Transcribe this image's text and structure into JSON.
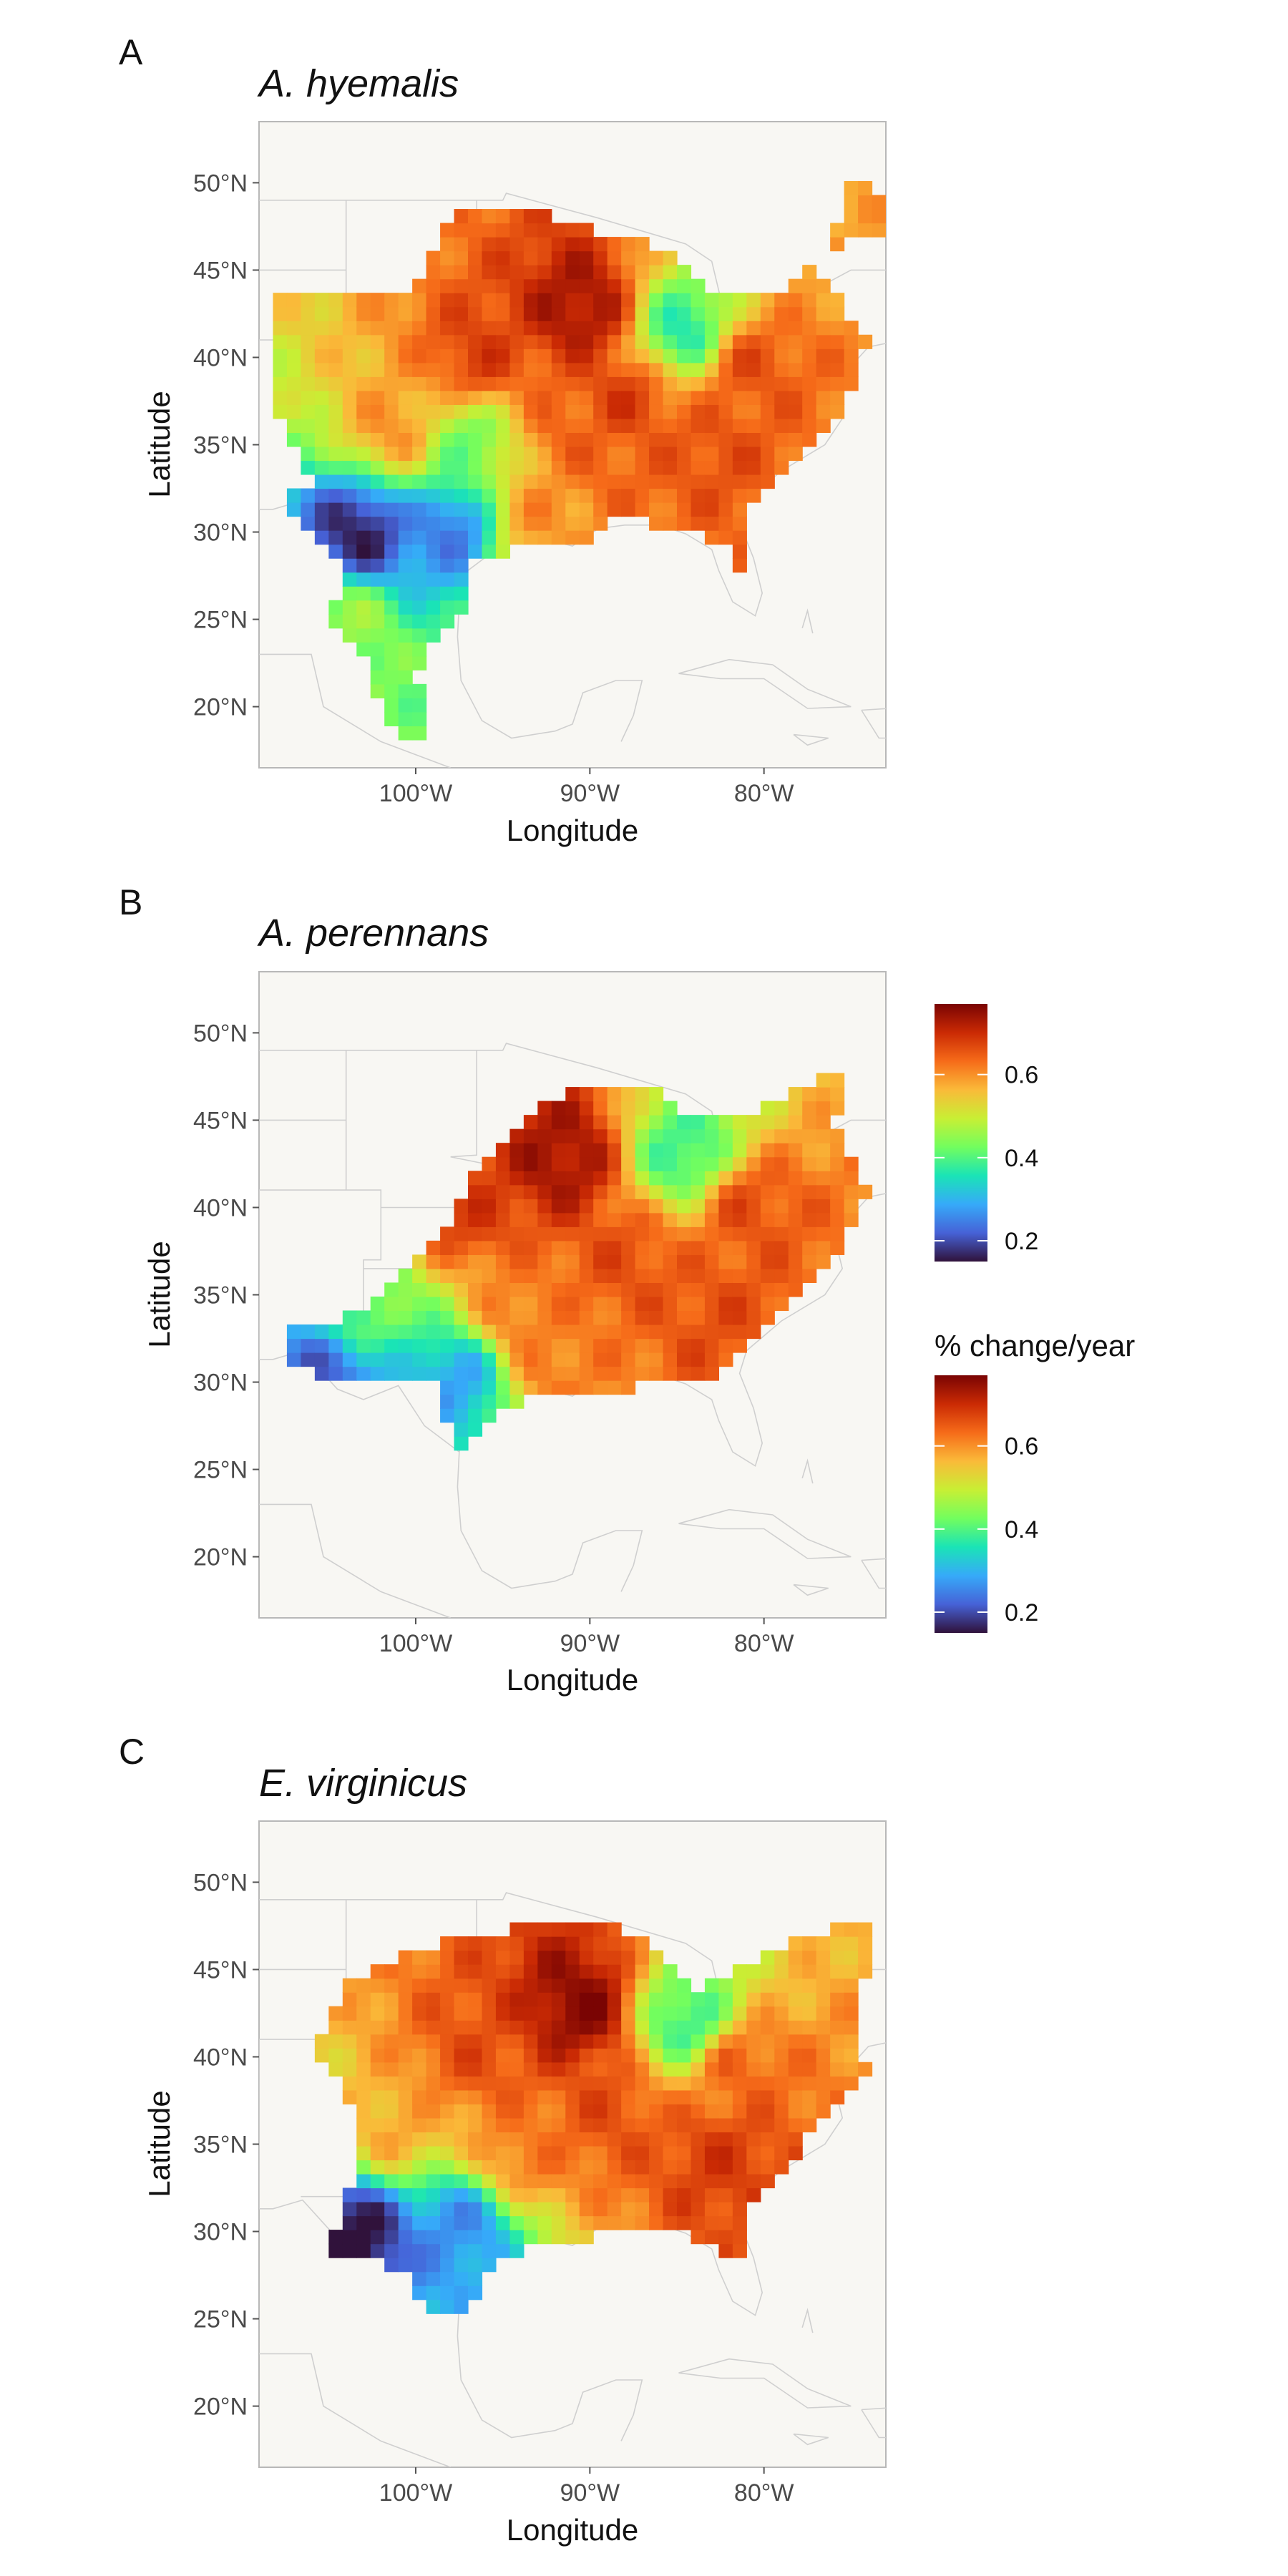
{
  "figure": {
    "panels": [
      {
        "letter": "A",
        "title": "A. hyemalis"
      },
      {
        "letter": "B",
        "title": "A. perennans"
      },
      {
        "letter": "C",
        "title": "E. virginicus"
      }
    ]
  },
  "chart_data": [
    {
      "type": "heatmap",
      "panel": "A",
      "title": "A. hyemalis",
      "xlabel": "Longitude",
      "ylabel": "Latitude",
      "x_ticks": [
        "100°W",
        "90°W",
        "80°W"
      ],
      "x_tick_values": [
        -100,
        -90,
        -80
      ],
      "y_ticks": [
        "20°N",
        "25°N",
        "30°N",
        "35°N",
        "40°N",
        "45°N",
        "50°N"
      ],
      "y_tick_values": [
        20,
        25,
        30,
        35,
        40,
        45,
        50
      ],
      "xlim": [
        -109,
        -73
      ],
      "ylim": [
        16.5,
        53.5
      ],
      "grid": false,
      "value_range": [
        0.15,
        0.77
      ],
      "hotspots": [
        {
          "lon": -90.5,
          "lat": 42.8,
          "value": 0.74
        },
        {
          "lon": -96.5,
          "lat": 40.0,
          "value": 0.68
        },
        {
          "lon": -88.0,
          "lat": 37.5,
          "value": 0.68
        },
        {
          "lon": -91.0,
          "lat": 36.0,
          "value": 0.64
        },
        {
          "lon": -88.0,
          "lat": 34.0,
          "value": 0.64
        },
        {
          "lon": -83.0,
          "lat": 34.5,
          "value": 0.66
        },
        {
          "lon": -81.0,
          "lat": 39.5,
          "value": 0.66
        },
        {
          "lon": -101.0,
          "lat": 36.0,
          "value": 0.6
        },
        {
          "lon": -93.0,
          "lat": 31.0,
          "value": 0.6
        },
        {
          "lon": -103.2,
          "lat": 29.9,
          "value": 0.16
        },
        {
          "lon": -98.0,
          "lat": 30.2,
          "value": 0.24
        },
        {
          "lon": -84.5,
          "lat": 41.5,
          "value": 0.36
        },
        {
          "lon": -97.0,
          "lat": 35.0,
          "value": 0.42
        },
        {
          "lon": -104.0,
          "lat": 25.0,
          "value": 0.46
        }
      ]
    },
    {
      "type": "heatmap",
      "panel": "B",
      "title": "A. perennans",
      "xlabel": "Longitude",
      "ylabel": "Latitude",
      "x_ticks": [
        "100°W",
        "90°W",
        "80°W"
      ],
      "x_tick_values": [
        -100,
        -90,
        -80
      ],
      "y_ticks": [
        "20°N",
        "25°N",
        "30°N",
        "35°N",
        "40°N",
        "45°N",
        "50°N"
      ],
      "y_tick_values": [
        20,
        25,
        30,
        35,
        40,
        45,
        50
      ],
      "xlim": [
        -109,
        -73
      ],
      "ylim": [
        16.5,
        53.5
      ],
      "grid": false,
      "value_range": [
        0.15,
        0.77
      ],
      "hotspots": [
        {
          "lon": -91.5,
          "lat": 42.8,
          "value": 0.74
        },
        {
          "lon": -97.0,
          "lat": 40.0,
          "value": 0.68
        },
        {
          "lon": -88.0,
          "lat": 37.0,
          "value": 0.66
        },
        {
          "lon": -82.5,
          "lat": 33.5,
          "value": 0.66
        },
        {
          "lon": -81.0,
          "lat": 40.0,
          "value": 0.66
        },
        {
          "lon": -94.0,
          "lat": 34.0,
          "value": 0.62
        },
        {
          "lon": -92.0,
          "lat": 31.0,
          "value": 0.62
        },
        {
          "lon": -105.0,
          "lat": 30.5,
          "value": 0.22
        },
        {
          "lon": -97.5,
          "lat": 30.2,
          "value": 0.28
        },
        {
          "lon": -84.5,
          "lat": 43.0,
          "value": 0.38
        },
        {
          "lon": -103.0,
          "lat": 34.0,
          "value": 0.42
        }
      ]
    },
    {
      "type": "heatmap",
      "panel": "C",
      "title": "E. virginicus",
      "xlabel": "Longitude",
      "ylabel": "Latitude",
      "x_ticks": [
        "100°W",
        "90°W",
        "80°W"
      ],
      "x_tick_values": [
        -100,
        -90,
        -80
      ],
      "y_ticks": [
        "20°N",
        "25°N",
        "30°N",
        "35°N",
        "40°N",
        "45°N",
        "50°N"
      ],
      "y_tick_values": [
        20,
        25,
        30,
        35,
        40,
        45,
        50
      ],
      "xlim": [
        -109,
        -73
      ],
      "ylim": [
        16.5,
        53.5
      ],
      "grid": false,
      "value_range": [
        0.15,
        0.77
      ],
      "hotspots": [
        {
          "lon": -90.5,
          "lat": 42.8,
          "value": 0.76
        },
        {
          "lon": -96.5,
          "lat": 40.2,
          "value": 0.66
        },
        {
          "lon": -89.0,
          "lat": 37.0,
          "value": 0.66
        },
        {
          "lon": -82.5,
          "lat": 34.0,
          "value": 0.68
        },
        {
          "lon": -81.5,
          "lat": 39.5,
          "value": 0.64
        },
        {
          "lon": -94.0,
          "lat": 34.5,
          "value": 0.62
        },
        {
          "lon": -101.0,
          "lat": 36.0,
          "value": 0.58
        },
        {
          "lon": -103.5,
          "lat": 29.8,
          "value": 0.14
        },
        {
          "lon": -97.5,
          "lat": 30.3,
          "value": 0.26
        },
        {
          "lon": -84.5,
          "lat": 42.0,
          "value": 0.38
        }
      ]
    }
  ],
  "legend": {
    "title": "% change/year",
    "ticks": [
      "0.2",
      "0.4",
      "0.6"
    ],
    "tick_values": [
      0.2,
      0.4,
      0.6
    ],
    "range": [
      0.15,
      0.77
    ],
    "colormap": [
      "#30123b",
      "#4662d7",
      "#36aaf9",
      "#1ae4b6",
      "#72fe5e",
      "#c8ef34",
      "#faba39",
      "#f66b19",
      "#ca2a04",
      "#7a0403"
    ]
  },
  "colors": {
    "panel_background": "#f8f7f3",
    "panel_border": "#b8b8b8",
    "map_outline": "#cfcfcf"
  }
}
